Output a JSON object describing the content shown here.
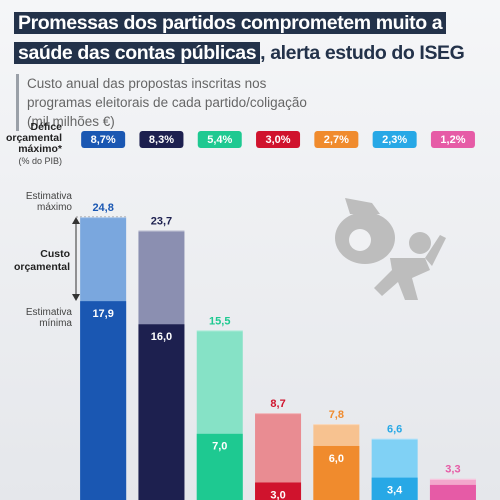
{
  "chart_data": {
    "type": "range-bar",
    "title_highlight": "Promessas dos partidos comprometem muito a saúde das contas públicas",
    "title_end": ", alerta estudo do ISEG",
    "subtitle": "Custo anual das propostas inscritas nos programas eleitorais de cada partido/coligação (mil milhões €)",
    "annotation": "Custo orçamental",
    "deficit": {
      "label": "Défice orçamental máximo*",
      "unit": "(% do PIB)",
      "values": [
        8.7,
        8.3,
        5.4,
        3.0,
        2.7,
        2.3,
        1.2
      ],
      "value_labels": [
        "8,7%",
        "8,3%",
        "5,4%",
        "3,0%",
        "2,7%",
        "2,3%",
        "1,2%"
      ]
    },
    "series": [
      {
        "name": "Estimativa máximo",
        "colors": [
          "#7aa7de",
          "#8b8fb1",
          "#86e2c6",
          "#e98c92",
          "#f7c290",
          "#80d1f5",
          "#f3a7cc"
        ],
        "values": [
          24.8,
          23.7,
          15.5,
          8.7,
          7.8,
          6.6,
          3.3
        ],
        "value_labels": [
          "24,8",
          "23,7",
          "15,5",
          "8,7",
          "7,8",
          "6,6",
          "3,3"
        ]
      },
      {
        "name": "Estimativa mínima",
        "colors": [
          "#1a57b2",
          "#1d204f",
          "#1ec991",
          "#d0132d",
          "#f08b2d",
          "#27a8e6",
          "#e65ba6"
        ],
        "values": [
          17.9,
          16.0,
          7.0,
          3.0,
          6.0,
          3.4,
          2.8
        ],
        "value_labels": [
          "17,9",
          "16,0",
          "7,0",
          "3,0",
          "6,0",
          "3,4",
          null
        ]
      }
    ]
  }
}
